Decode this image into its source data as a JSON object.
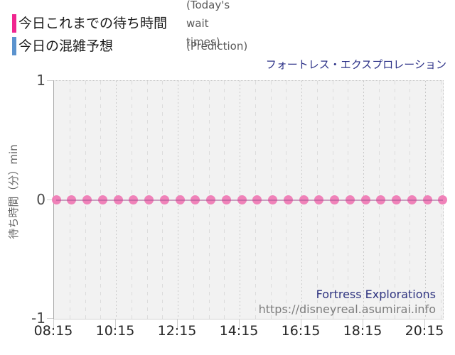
{
  "legend": {
    "items": [
      {
        "label_jp": "今日これまでの待ち時間",
        "label_en": "(Today's wait times)",
        "color": "#f0258f"
      },
      {
        "label_jp": "今日の混雑予想",
        "label_en": "(Prediction)",
        "color": "#5b93ce"
      }
    ]
  },
  "chart": {
    "title": "フォートレス・エクスプロレーション",
    "watermark_name": "Fortress Explorations",
    "watermark_url": "https://disneyreal.asumirai.info"
  },
  "chart_data": {
    "type": "line",
    "title": "フォートレス・エクスプロレーション",
    "xlabel": "",
    "ylabel": "待ち時間（分）min",
    "ylim": [
      -1,
      1
    ],
    "yticks": [
      "1",
      "0",
      "-1"
    ],
    "xticks": [
      "08:15",
      "10:15",
      "12:15",
      "14:15",
      "16:15",
      "18:15",
      "20:15"
    ],
    "x": [
      "08:15",
      "08:45",
      "09:15",
      "09:45",
      "10:15",
      "10:45",
      "11:15",
      "11:45",
      "12:15",
      "12:45",
      "13:15",
      "13:45",
      "14:15",
      "14:45",
      "15:15",
      "15:45",
      "16:15",
      "16:45",
      "17:15",
      "17:45",
      "18:15",
      "18:45",
      "19:15",
      "19:45",
      "20:15",
      "20:45"
    ],
    "series": [
      {
        "name": "今日これまでの待ち時間 (Today's wait times)",
        "color": "#f07ab5",
        "values": [
          0,
          0,
          0,
          0,
          0,
          0,
          0,
          0,
          0,
          0,
          0,
          0,
          0,
          0,
          0,
          0,
          0,
          0,
          0,
          0,
          0,
          0,
          0,
          0,
          0,
          0
        ]
      },
      {
        "name": "今日の混雑予想 (Prediction)",
        "color": "#5b93ce",
        "values": []
      }
    ],
    "grid": "vertical dashed minor every 30min, dotted major every 2h",
    "legend_position": "top-left"
  }
}
